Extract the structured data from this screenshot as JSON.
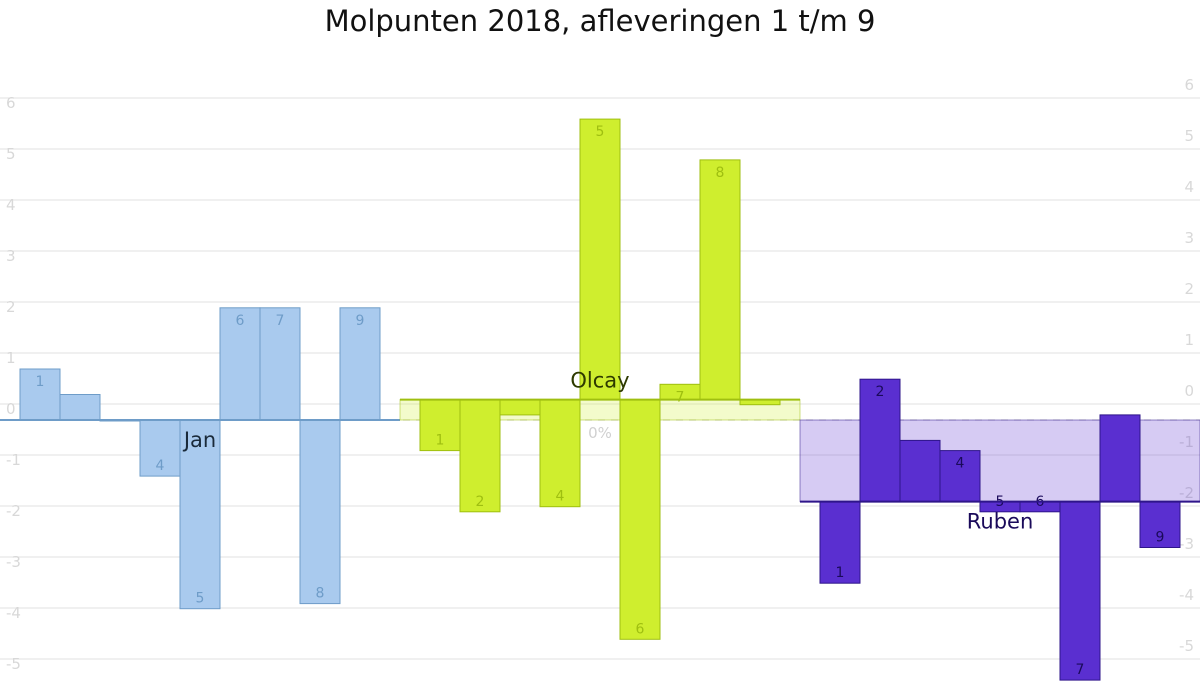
{
  "title": "Molpunten 2018, afleveringen 1 t/m 9",
  "chart_data": {
    "type": "bar",
    "title": "Molpunten 2018, afleveringen 1 t/m 9",
    "xlabel": "",
    "ylabel": "",
    "ylim": [
      -5,
      6
    ],
    "ticks": [
      -5,
      -4,
      -3,
      -2,
      -1,
      0,
      1,
      2,
      3,
      4,
      5,
      6
    ],
    "tick_labels": [
      "-5",
      "-4",
      "-3",
      "-2",
      "-1",
      "0",
      "1",
      "2",
      "3",
      "4",
      "5",
      "6"
    ],
    "zero_marker_label": "0%",
    "grid": true,
    "legend": "none",
    "categories": [
      "1",
      "2",
      "3",
      "4",
      "5",
      "6",
      "7",
      "8",
      "9"
    ],
    "series": [
      {
        "name": "Jan",
        "color": "#a9caee",
        "edge": "#6e9cc8",
        "average": 0.0,
        "values": [
          1.0,
          0.5,
          0.0,
          -1.1,
          -3.7,
          2.2,
          2.2,
          -3.6,
          2.2
        ],
        "labels": [
          "1",
          "",
          "",
          "4",
          "5",
          "6",
          "7",
          "8",
          "9"
        ]
      },
      {
        "name": "Olcay",
        "color": "#cfee2e",
        "edge": "#9fbf10",
        "average": 0.4,
        "values": [
          -0.6,
          -1.8,
          0.1,
          -1.7,
          5.9,
          -4.3,
          0.7,
          5.1,
          0.3
        ],
        "labels": [
          "1",
          "2",
          "",
          "4",
          "5",
          "6",
          "7",
          "8",
          ""
        ]
      },
      {
        "name": "Ruben",
        "color": "#5a2fd0",
        "edge": "#2e158a",
        "average": -1.6,
        "values": [
          -3.2,
          0.8,
          -0.4,
          -0.6,
          -1.8,
          -1.8,
          -5.1,
          0.1,
          -2.5
        ],
        "labels": [
          "1",
          "2",
          "",
          "4",
          "5",
          "6",
          "7",
          "",
          "9"
        ]
      }
    ]
  }
}
